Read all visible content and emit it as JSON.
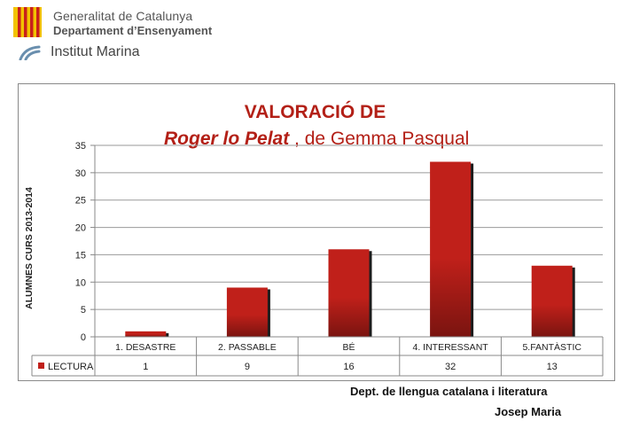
{
  "header": {
    "org_name": "Generalitat de Catalunya",
    "dept_name": "Departament d’Ensenyament",
    "institute": "Institut Marina"
  },
  "chart_data": {
    "type": "bar",
    "title_line1": "VALORACIÓ DE",
    "title_book": "Roger lo Pelat",
    "title_rest": ", de Gemma Pasqual",
    "ylabel": "ALUMNES CURS 2013-2014",
    "ylim": [
      0,
      35
    ],
    "yticks": [
      0,
      5,
      10,
      15,
      20,
      25,
      30,
      35
    ],
    "grid": true,
    "categories": [
      "1. DESASTRE",
      "2. PASSABLE",
      "BÉ",
      "4. INTERESSANT",
      "5.FANTÀSTIC"
    ],
    "series": [
      {
        "name": "LECTURA",
        "values": [
          1,
          9,
          16,
          32,
          13
        ]
      }
    ],
    "data_table": true,
    "bar_color": "#c0201a"
  },
  "footer": {
    "line1": "Dept. de llengua catalana i literatura",
    "line2": "Josep Maria"
  }
}
